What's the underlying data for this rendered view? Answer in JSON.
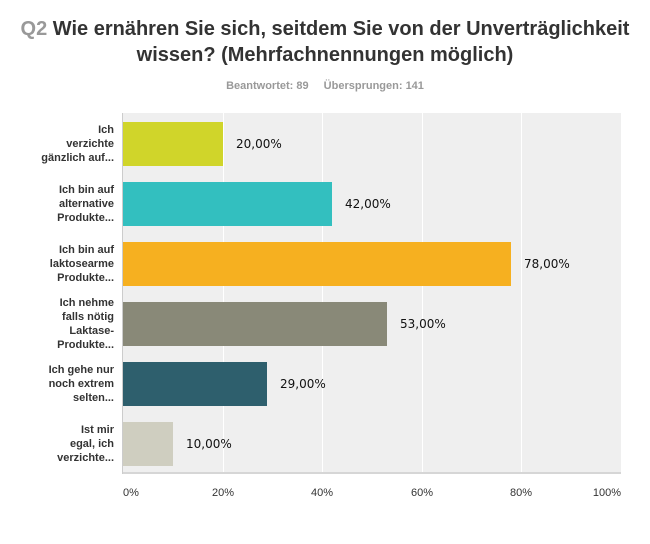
{
  "header": {
    "question_number": "Q2",
    "title": "Wie ernähren Sie sich, seitdem Sie von der Unverträglichkeit wissen? (Mehrfachnennungen möglich)",
    "answered": "Beantwortet: 89",
    "skipped": "Übersprungen: 141"
  },
  "chart_data": {
    "type": "bar",
    "orientation": "horizontal",
    "title": "Q2 Wie ernähren Sie sich, seitdem Sie von der Unverträglichkeit wissen? (Mehrfachnennungen möglich)",
    "xlabel": "",
    "ylabel": "",
    "xlim": [
      0,
      100
    ],
    "grid": true,
    "categories": [
      "Ich verzichte gänzlich auf...",
      "Ich bin auf alternative Produkte...",
      "Ich bin auf laktosearme Produkte...",
      "Ich nehme falls nötig Laktase-Produkte...",
      "Ich gehe nur noch extrem selten...",
      "Ist mir egal, ich verzichte..."
    ],
    "category_lines": [
      "Ich\nverzichte\ngänzlich auf...",
      "Ich bin auf\nalternative\nProdukte...",
      "Ich bin auf\nlaktosearme\nProdukte...",
      "Ich nehme\nfalls nötig\nLaktase-\nProdukte...",
      "Ich gehe nur\nnoch extrem\nselten...",
      "Ist mir\negal, ich\nverzichte..."
    ],
    "values": [
      20,
      42,
      78,
      53,
      29,
      10
    ],
    "value_labels": [
      "20,00%",
      "42,00%",
      "78,00%",
      "53,00%",
      "29,00%",
      "10,00%"
    ],
    "colors": [
      "#d0d52a",
      "#33bfbf",
      "#f6b020",
      "#898978",
      "#2e5f6d",
      "#cfcec0"
    ],
    "x_ticks": [
      "0%",
      "20%",
      "40%",
      "60%",
      "80%",
      "100%"
    ]
  }
}
